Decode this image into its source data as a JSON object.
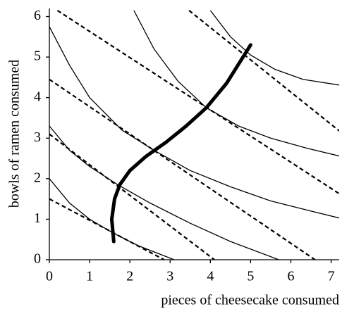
{
  "chart_data": {
    "type": "line",
    "x_label": "pieces of cheesecake consumed",
    "y_label": "bowls of ramen consumed",
    "xlim": [
      0,
      7.2
    ],
    "ylim": [
      0,
      6.2
    ],
    "xticks": [
      0,
      1,
      2,
      3,
      4,
      5,
      6,
      7
    ],
    "yticks": [
      0,
      1,
      2,
      3,
      4,
      5,
      6
    ],
    "color": "#000000",
    "series": [
      {
        "style": "solid",
        "x": [
          0,
          0.5,
          1.0,
          1.6,
          2.2,
          3.1
        ],
        "values": [
          2.0,
          1.4,
          1.0,
          0.65,
          0.35,
          0
        ]
      },
      {
        "style": "solid",
        "x": [
          0,
          0.5,
          1,
          1.7,
          2.5,
          3.5,
          4.5,
          5.7
        ],
        "values": [
          3.3,
          2.7,
          2.3,
          1.85,
          1.4,
          0.9,
          0.45,
          0
        ]
      },
      {
        "style": "solid",
        "x": [
          0,
          0.5,
          1,
          1.8,
          2.6,
          3.5,
          4.5,
          5.5,
          6.5,
          7.2
        ],
        "values": [
          5.75,
          4.8,
          4.0,
          3.2,
          2.7,
          2.2,
          1.8,
          1.45,
          1.2,
          1.03
        ]
      },
      {
        "style": "solid",
        "x": [
          2.1,
          2.6,
          3.2,
          3.9,
          4.7,
          5.5,
          6.4,
          7.2
        ],
        "values": [
          6.15,
          5.2,
          4.4,
          3.75,
          3.3,
          3.0,
          2.75,
          2.56
        ]
      },
      {
        "style": "solid",
        "x": [
          4.0,
          4.5,
          5.0,
          5.6,
          6.3,
          7.2
        ],
        "values": [
          6.15,
          5.5,
          5.05,
          4.7,
          4.45,
          4.31
        ]
      },
      {
        "style": "dashed",
        "x": [
          0,
          2.85
        ],
        "values": [
          1.5,
          0
        ]
      },
      {
        "style": "dashed",
        "x": [
          0,
          4.1
        ],
        "values": [
          3.1,
          0
        ]
      },
      {
        "style": "dashed",
        "x": [
          0,
          6.6
        ],
        "values": [
          4.45,
          0
        ]
      },
      {
        "style": "dashed",
        "x": [
          0.2,
          7.2
        ],
        "values": [
          6.15,
          1.63
        ]
      },
      {
        "style": "dashed",
        "x": [
          3.47,
          7.2
        ],
        "values": [
          6.15,
          3.18
        ]
      },
      {
        "style": "thick",
        "x": [
          1.6,
          1.55,
          1.62,
          1.75,
          2.0,
          2.4,
          2.9,
          3.4,
          3.9,
          4.4,
          5.0
        ],
        "values": [
          0.45,
          1.0,
          1.5,
          1.85,
          2.2,
          2.55,
          2.9,
          3.3,
          3.75,
          4.35,
          5.3
        ]
      }
    ]
  }
}
